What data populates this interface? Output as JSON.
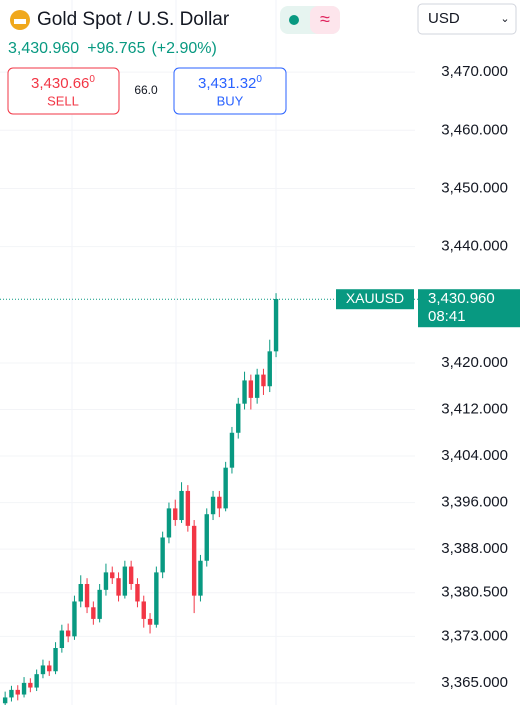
{
  "header": {
    "title": "Gold Spot / U.S. Dollar",
    "price": "3,430.960",
    "change": "+96.765",
    "change_pct": "(+2.90%)",
    "currency": "USD"
  },
  "sell": {
    "price": "3,430.66",
    "price_small": "0",
    "label": "SELL"
  },
  "spread": "66.0",
  "buy": {
    "price": "3,431.32",
    "price_small": "0",
    "label": "BUY"
  },
  "chart_data": {
    "type": "candlestick",
    "symbol": "XAUUSD",
    "time": "08:41",
    "last_price": {
      "value": 3430.96,
      "label": "3,430.960"
    },
    "up_color": "#089981",
    "down_color": "#f23645",
    "grid": true,
    "ylim": [
      3361.2,
      3482.4
    ],
    "yticks": [
      {
        "value": 3470,
        "label": "3,470.000"
      },
      {
        "value": 3460,
        "label": "3,460.000"
      },
      {
        "value": 3450,
        "label": "3,450.000"
      },
      {
        "value": 3440,
        "label": "3,440.000"
      },
      {
        "value": 3420,
        "label": "3,420.000"
      },
      {
        "value": 3412,
        "label": "3,412.000"
      },
      {
        "value": 3404,
        "label": "3,404.000"
      },
      {
        "value": 3396,
        "label": "3,396.000"
      },
      {
        "value": 3388,
        "label": "3,388.000"
      },
      {
        "value": 3380.5,
        "label": "3,380.500"
      },
      {
        "value": 3373,
        "label": "3,373.000"
      },
      {
        "value": 3365,
        "label": "3,365.000"
      }
    ],
    "ohlc": [
      [
        3361.5,
        3363.5,
        3360.5,
        3362.5
      ],
      [
        3362.5,
        3364.5,
        3361.8,
        3363.8
      ],
      [
        3363.8,
        3364.6,
        3362,
        3363
      ],
      [
        3363,
        3366,
        3362.5,
        3365
      ],
      [
        3365,
        3365.8,
        3363.4,
        3364.2
      ],
      [
        3364.2,
        3367.3,
        3363.6,
        3366.5
      ],
      [
        3366.5,
        3369,
        3365.8,
        3368
      ],
      [
        3368,
        3368.8,
        3366.2,
        3367
      ],
      [
        3367,
        3372,
        3366.5,
        3371
      ],
      [
        3371,
        3375,
        3370.2,
        3374
      ],
      [
        3374,
        3375.2,
        3372,
        3373
      ],
      [
        3373,
        3380,
        3372.4,
        3379
      ],
      [
        3379,
        3383.5,
        3378,
        3382
      ],
      [
        3382,
        3383,
        3377,
        3378
      ],
      [
        3378,
        3379,
        3375,
        3376
      ],
      [
        3376,
        3382,
        3375.4,
        3381
      ],
      [
        3381,
        3385.5,
        3380,
        3384
      ],
      [
        3384,
        3385,
        3382,
        3383
      ],
      [
        3383,
        3384,
        3379,
        3380
      ],
      [
        3380,
        3386,
        3379.5,
        3385
      ],
      [
        3385,
        3386,
        3381,
        3382
      ],
      [
        3382,
        3383,
        3378,
        3379
      ],
      [
        3379,
        3380,
        3374.5,
        3376
      ],
      [
        3376,
        3377,
        3373.5,
        3375
      ],
      [
        3375,
        3385,
        3374.5,
        3384
      ],
      [
        3384,
        3391,
        3383,
        3390
      ],
      [
        3390,
        3396,
        3389,
        3395
      ],
      [
        3395,
        3396.5,
        3392,
        3393
      ],
      [
        3393,
        3399.5,
        3392.5,
        3398
      ],
      [
        3398,
        3399,
        3391,
        3392
      ],
      [
        3392,
        3393,
        3377,
        3380
      ],
      [
        3380,
        3387,
        3379,
        3386
      ],
      [
        3386,
        3395,
        3385,
        3394
      ],
      [
        3394,
        3398,
        3393,
        3397
      ],
      [
        3397,
        3398,
        3393.5,
        3395
      ],
      [
        3395,
        3403,
        3394.5,
        3402
      ],
      [
        3402,
        3409,
        3401,
        3408
      ],
      [
        3408,
        3414,
        3407,
        3413
      ],
      [
        3413,
        3418.5,
        3412,
        3417
      ],
      [
        3417,
        3418,
        3412,
        3414
      ],
      [
        3414,
        3419,
        3413,
        3418
      ],
      [
        3418,
        3419,
        3414.5,
        3416
      ],
      [
        3416,
        3424,
        3415,
        3422
      ],
      [
        3422,
        3432,
        3421,
        3431
      ]
    ]
  }
}
